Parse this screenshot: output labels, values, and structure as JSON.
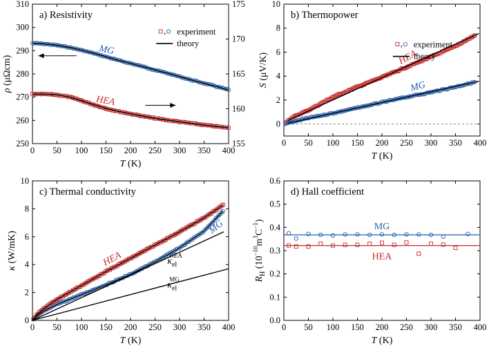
{
  "figure": {
    "panels": [
      "a",
      "b",
      "c",
      "d"
    ]
  },
  "chart_data": [
    {
      "id": "a",
      "type": "line",
      "title": "a) Resistivity",
      "xlabel": {
        "sym": "T",
        "unit": " (K)"
      },
      "ylabel": {
        "sym": "ρ",
        "unit": " (μΩcm)"
      },
      "xlim": [
        0,
        400
      ],
      "ylim": [
        250,
        310
      ],
      "y2lim": [
        155,
        175
      ],
      "xticks": [
        0,
        50,
        100,
        150,
        200,
        250,
        300,
        350,
        400
      ],
      "yticks": [
        250,
        260,
        270,
        280,
        290,
        300,
        310
      ],
      "y2ticks": [
        155,
        160,
        165,
        170,
        175
      ],
      "legend": {
        "position": "top-right",
        "experiment": "experiment",
        "theory": "theory"
      },
      "colors": {
        "HEA": "#c62828",
        "MG": "#1f5fb0"
      },
      "series": [
        {
          "name": "MG",
          "axis": "right",
          "label": "MG",
          "x": [
            0,
            25,
            50,
            75,
            100,
            125,
            150,
            175,
            200,
            225,
            250,
            275,
            300,
            325,
            350,
            375,
            400
          ],
          "y": [
            169.4,
            169.3,
            169.1,
            168.8,
            168.4,
            167.95,
            167.45,
            166.95,
            166.5,
            166.05,
            165.55,
            165.1,
            164.6,
            164.1,
            163.65,
            163.2,
            162.7
          ]
        },
        {
          "name": "HEA",
          "axis": "left",
          "label": "HEA",
          "x": [
            0,
            25,
            50,
            75,
            100,
            125,
            150,
            175,
            200,
            225,
            250,
            275,
            300,
            325,
            350,
            375,
            400
          ],
          "y": [
            271.3,
            271.3,
            271,
            270.1,
            268.5,
            266.7,
            265.1,
            263.9,
            262.8,
            261.8,
            260.9,
            260.1,
            259.4,
            258.7,
            258.0,
            257.4,
            256.8
          ]
        }
      ]
    },
    {
      "id": "b",
      "type": "line",
      "title": "b) Thermopower",
      "xlabel": {
        "sym": "T",
        "unit": " (K)"
      },
      "ylabel": {
        "sym": "S",
        "unit": " (μV/K)"
      },
      "xlim": [
        0,
        400
      ],
      "ylim": [
        -1,
        10
      ],
      "xticks": [
        0,
        50,
        100,
        150,
        200,
        250,
        300,
        350,
        400
      ],
      "yticks": [
        0,
        2,
        4,
        6,
        8,
        10
      ],
      "legend": {
        "position": "top-right",
        "experiment": "experiment",
        "theory": "theory"
      },
      "colors": {
        "HEA": "#c62828",
        "MG": "#1f5fb0"
      },
      "series": [
        {
          "name": "HEA",
          "label": "HEA",
          "x": [
            0,
            10,
            25,
            50,
            100,
            150,
            200,
            250,
            300,
            350,
            390
          ],
          "y": [
            0,
            0.35,
            0.7,
            1.15,
            2.25,
            3.1,
            3.9,
            4.75,
            5.6,
            6.5,
            7.4
          ]
        },
        {
          "name": "MG",
          "label": "MG",
          "x": [
            0,
            10,
            25,
            50,
            100,
            150,
            200,
            250,
            300,
            350,
            390
          ],
          "y": [
            0,
            0.1,
            0.25,
            0.5,
            0.9,
            1.35,
            1.8,
            2.25,
            2.65,
            3.1,
            3.5
          ]
        }
      ]
    },
    {
      "id": "c",
      "type": "line",
      "title": "c) Thermal conductivity",
      "xlabel": {
        "sym": "T",
        "unit": " (K)"
      },
      "ylabel": {
        "sym": "κ",
        "unit": " (W/mK)"
      },
      "xlim": [
        0,
        400
      ],
      "ylim": [
        0,
        10
      ],
      "xticks": [
        0,
        50,
        100,
        150,
        200,
        250,
        300,
        350,
        400
      ],
      "yticks": [
        0,
        2,
        4,
        6,
        8,
        10
      ],
      "colors": {
        "HEA": "#c62828",
        "MG": "#1f5fb0"
      },
      "kappa_labels": {
        "sym": "κ",
        "sub": "el",
        "hea": "HEA",
        "mg": "MG"
      },
      "series": [
        {
          "name": "HEA",
          "label": "HEA",
          "x": [
            0,
            10,
            25,
            50,
            75,
            100,
            150,
            200,
            250,
            300,
            350,
            390
          ],
          "y": [
            0,
            0.45,
            0.9,
            1.5,
            2.0,
            2.5,
            3.5,
            4.45,
            5.4,
            6.35,
            7.35,
            8.3
          ]
        },
        {
          "name": "MG",
          "label": "MG",
          "x": [
            0,
            10,
            25,
            50,
            75,
            100,
            150,
            200,
            250,
            300,
            350,
            390
          ],
          "y": [
            0,
            0.35,
            0.7,
            1.15,
            1.5,
            1.85,
            2.55,
            3.3,
            4.2,
            5.2,
            6.4,
            7.9
          ]
        },
        {
          "name": "kappa_el_HEA",
          "x": [
            0,
            390
          ],
          "y": [
            0,
            6.35
          ]
        },
        {
          "name": "kappa_el_MG",
          "x": [
            0,
            400
          ],
          "y": [
            0,
            3.7
          ]
        }
      ]
    },
    {
      "id": "d",
      "type": "scatter",
      "title": "d) Hall coefficient",
      "xlabel": {
        "sym": "T",
        "unit": " (K)"
      },
      "ylabel": {
        "sym": "R",
        "sub": "H",
        "unit": " (10",
        "exp": "−10",
        "unit2": "m",
        "exp2": "3",
        "unit3": "C",
        "exp3": "−1",
        "unit4": ")"
      },
      "xlim": [
        0,
        400
      ],
      "ylim": [
        0.0,
        0.6
      ],
      "xticks": [
        0,
        50,
        100,
        150,
        200,
        250,
        300,
        350,
        400
      ],
      "yticks": [
        "0.0",
        "0.1",
        "0.2",
        "0.3",
        "0.4",
        "0.5",
        "0.6"
      ],
      "colors": {
        "HEA": "#c62828",
        "MG": "#1f5fb0"
      },
      "series": [
        {
          "name": "MG",
          "label": "MG",
          "fit": 0.368,
          "x": [
            10,
            25,
            50,
            75,
            100,
            125,
            150,
            175,
            200,
            225,
            250,
            275,
            300,
            325,
            375
          ],
          "y": [
            0.375,
            0.352,
            0.372,
            0.368,
            0.365,
            0.37,
            0.37,
            0.368,
            0.37,
            0.368,
            0.37,
            0.37,
            0.368,
            0.36,
            0.372
          ]
        },
        {
          "name": "HEA",
          "label": "HEA",
          "fit": 0.322,
          "x": [
            10,
            25,
            50,
            75,
            100,
            125,
            150,
            175,
            200,
            225,
            250,
            275,
            300,
            325,
            350
          ],
          "y": [
            0.322,
            0.318,
            0.318,
            0.33,
            0.322,
            0.325,
            0.325,
            0.33,
            0.334,
            0.325,
            0.335,
            0.287,
            0.33,
            0.326,
            0.312
          ]
        }
      ]
    }
  ]
}
